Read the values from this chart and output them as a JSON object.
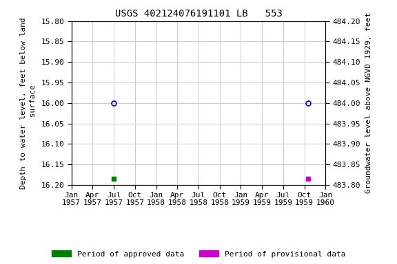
{
  "title": "USGS 402124076191101 LB   553",
  "ylabel_left": "Depth to water level, feet below land\n surface",
  "ylabel_right": "Groundwater level above NGVD 1929, feet",
  "ylim_left": [
    15.8,
    16.2
  ],
  "ylim_right_top": 484.2,
  "ylim_right_bottom": 483.8,
  "yticks_left": [
    15.8,
    15.85,
    15.9,
    15.95,
    16.0,
    16.05,
    16.1,
    16.15,
    16.2
  ],
  "yticks_right": [
    484.2,
    484.15,
    484.1,
    484.05,
    484.0,
    483.95,
    483.9,
    483.85,
    483.8
  ],
  "circle_points": [
    {
      "date_num": 1957.5,
      "depth": 16.0
    },
    {
      "date_num": 1959.79,
      "depth": 16.0
    }
  ],
  "green_square_points": [
    {
      "date_num": 1957.5,
      "depth": 16.185
    }
  ],
  "magenta_square_points": [
    {
      "date_num": 1959.79,
      "depth": 16.185
    }
  ],
  "xtick_dates": [
    {
      "label": "Jan\n1957",
      "num": 1957.0
    },
    {
      "label": "Apr\n1957",
      "num": 1957.25
    },
    {
      "label": "Jul\n1957",
      "num": 1957.5
    },
    {
      "label": "Oct\n1957",
      "num": 1957.75
    },
    {
      "label": "Jan\n1958",
      "num": 1958.0
    },
    {
      "label": "Apr\n1958",
      "num": 1958.25
    },
    {
      "label": "Jul\n1958",
      "num": 1958.5
    },
    {
      "label": "Oct\n1958",
      "num": 1958.75
    },
    {
      "label": "Jan\n1959",
      "num": 1959.0
    },
    {
      "label": "Apr\n1959",
      "num": 1959.25
    },
    {
      "label": "Jul\n1959",
      "num": 1959.5
    },
    {
      "label": "Oct\n1959",
      "num": 1959.75
    },
    {
      "label": "Jan\n1960",
      "num": 1960.0
    }
  ],
  "xlim": [
    1957.0,
    1960.0
  ],
  "circle_color": "#0000cc",
  "green_color": "#008000",
  "magenta_color": "#cc00cc",
  "bg_color": "#ffffff",
  "grid_color": "#cccccc",
  "legend_approved": "Period of approved data",
  "legend_provisional": "Period of provisional data",
  "title_fontsize": 10,
  "label_fontsize": 8,
  "tick_fontsize": 8
}
